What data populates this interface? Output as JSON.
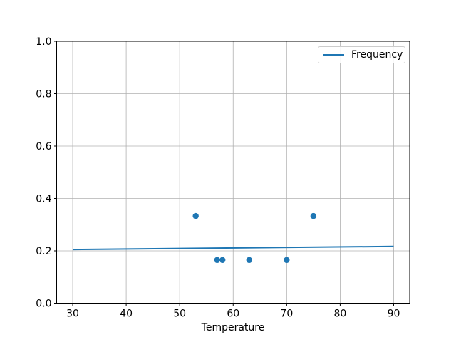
{
  "chart_data": {
    "type": "scatter",
    "title": "",
    "xlabel": "Temperature",
    "ylabel": "",
    "xlim": [
      27,
      93
    ],
    "ylim": [
      0.0,
      1.0
    ],
    "x_ticks": [
      30,
      40,
      50,
      60,
      70,
      80,
      90
    ],
    "y_ticks": [
      0.0,
      0.2,
      0.4,
      0.6,
      0.8,
      1.0
    ],
    "grid": true,
    "colors": {
      "series": "#1f77b4",
      "grid": "#b0b0b0",
      "spine": "#000000",
      "background": "#ffffff",
      "legend_border": "#cccccc"
    },
    "legend": {
      "label": "Frequency",
      "position": "upper right"
    },
    "scatter_points": [
      {
        "x": 53,
        "y": 0.333
      },
      {
        "x": 57,
        "y": 0.165
      },
      {
        "x": 58,
        "y": 0.165
      },
      {
        "x": 63,
        "y": 0.165
      },
      {
        "x": 70,
        "y": 0.165
      },
      {
        "x": 75,
        "y": 0.333
      }
    ],
    "line_series": {
      "name": "Frequency",
      "points": [
        {
          "x": 30,
          "y": 0.205
        },
        {
          "x": 90,
          "y": 0.217
        }
      ]
    }
  }
}
